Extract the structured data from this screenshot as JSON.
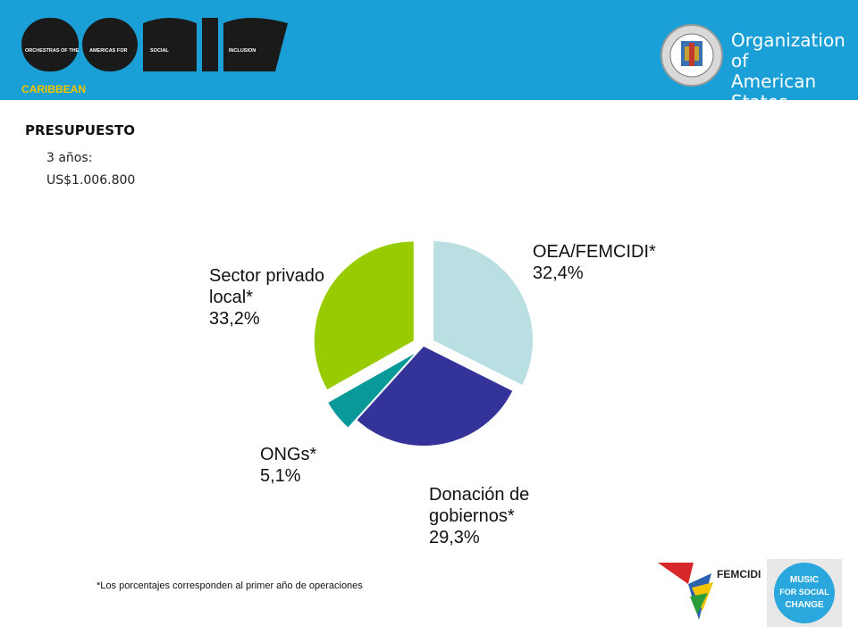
{
  "header": {
    "logo_words": [
      "ORCHESTRAS OF THE",
      "AMERICAS FOR",
      "SOCIAL",
      "INCLUSION"
    ],
    "logo_caribbean": "CARIBBEAN",
    "org_name_line1": "Organization of",
    "org_name_line2": "American States",
    "colors": {
      "banner": "#1a9fd6",
      "logo": "#1a1a1a",
      "caribbean": "#f5c400"
    }
  },
  "budget": {
    "title": "PRESUPUESTO",
    "period": "3 años:",
    "amount": "US$1.006.800"
  },
  "chart_data": {
    "type": "pie",
    "slices": [
      {
        "name": "OEA/FEMCIDI*",
        "value": 32.4,
        "label": "32,4%",
        "color": "#b9dfe3",
        "exploded": true
      },
      {
        "name": "Donación de\ngobiernos*",
        "value": 29.3,
        "label": "29,3%",
        "color": "#333399",
        "exploded": false
      },
      {
        "name": "ONGs*",
        "value": 5.1,
        "label": "5,1%",
        "color": "#0a9999",
        "exploded": true
      },
      {
        "name": "Sector privado\nlocal*",
        "value": 33.2,
        "label": "33,2%",
        "color": "#99cc00",
        "exploded": true
      }
    ]
  },
  "footnote": "*Los porcentajes corresponden al primer año de operaciones",
  "logos": {
    "femcidi": "FEMCIDI",
    "music": [
      "MUSIC",
      "FOR SOCIAL",
      "CHANGE"
    ]
  }
}
